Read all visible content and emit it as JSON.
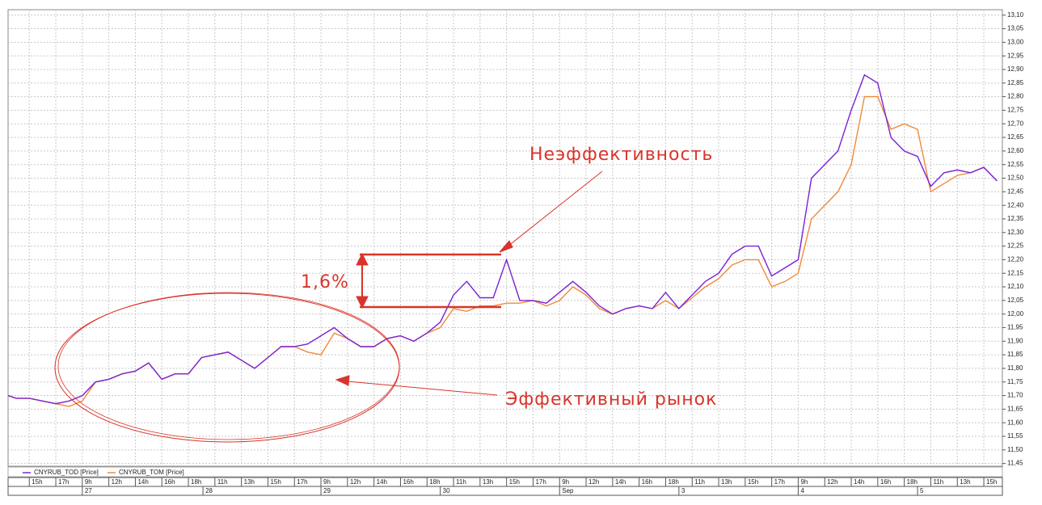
{
  "chart_data": {
    "type": "line",
    "x": [
      0.2,
      0.5,
      1.0,
      1.5,
      2.0,
      2.5,
      3.0,
      3.5,
      4.0,
      4.5,
      5.0,
      5.5,
      6.0,
      6.5,
      7.0,
      7.5,
      8.0,
      8.5,
      9.0,
      9.5,
      10.0,
      10.5,
      11.0,
      11.5,
      12.0,
      12.5,
      13.0,
      13.5,
      14.0,
      14.5,
      15.0,
      15.5,
      16.0,
      16.5,
      17.0,
      17.5,
      18.0,
      18.5,
      19.0,
      19.5,
      20.0,
      20.5,
      21.0,
      21.5,
      22.0,
      22.5,
      23.0,
      23.5,
      24.0,
      24.5,
      25.0,
      25.5,
      26.0,
      26.5,
      27.0,
      27.5,
      28.0,
      28.5,
      29.0,
      29.5,
      30.0,
      30.5,
      31.0,
      31.5,
      32.0,
      32.5,
      33.0,
      33.5,
      34.0,
      34.5,
      35.0,
      35.5,
      36.0,
      36.5,
      37.0,
      37.5
    ],
    "series": [
      {
        "name": "CNYRUB_TOD [Price]",
        "color": "#7b22d4",
        "values": [
          11.7,
          11.69,
          11.69,
          11.68,
          11.67,
          11.68,
          11.7,
          11.75,
          11.76,
          11.78,
          11.79,
          11.82,
          11.76,
          11.78,
          11.78,
          11.84,
          11.85,
          11.86,
          11.83,
          11.8,
          11.84,
          11.88,
          11.88,
          11.89,
          11.92,
          11.95,
          11.91,
          11.88,
          11.88,
          11.91,
          11.92,
          11.9,
          11.93,
          11.97,
          12.07,
          12.12,
          12.06,
          12.06,
          12.2,
          12.05,
          12.05,
          12.04,
          12.08,
          12.12,
          12.08,
          12.03,
          12.0,
          12.02,
          12.03,
          12.02,
          12.08,
          12.02,
          12.07,
          12.12,
          12.15,
          12.22,
          12.25,
          12.25,
          12.14,
          12.17,
          12.2,
          12.5,
          12.55,
          12.6,
          12.75,
          12.88,
          12.85,
          12.65,
          12.6,
          12.58,
          12.47,
          12.52,
          12.53,
          12.52,
          12.54,
          12.49
        ]
      },
      {
        "name": "CNYRUB_TOM [Price]",
        "color": "#f08a3a",
        "values": [
          11.7,
          11.69,
          11.69,
          11.68,
          11.67,
          11.66,
          11.68,
          11.75,
          11.76,
          11.78,
          11.79,
          11.82,
          11.76,
          11.78,
          11.78,
          11.84,
          11.85,
          11.86,
          11.83,
          11.8,
          11.84,
          11.88,
          11.88,
          11.86,
          11.85,
          11.93,
          11.91,
          11.88,
          11.88,
          11.91,
          11.92,
          11.9,
          11.93,
          11.95,
          12.02,
          12.01,
          12.03,
          12.03,
          12.04,
          12.04,
          12.05,
          12.03,
          12.05,
          12.1,
          12.07,
          12.02,
          12.0,
          12.02,
          12.03,
          12.02,
          12.05,
          12.02,
          12.06,
          12.1,
          12.13,
          12.18,
          12.2,
          12.2,
          12.1,
          12.12,
          12.15,
          12.35,
          12.4,
          12.45,
          12.55,
          12.8,
          12.8,
          12.68,
          12.7,
          12.68,
          12.45,
          12.48,
          12.51,
          12.52,
          12.54,
          12.49
        ]
      }
    ],
    "xlim": [
      0.2,
      37.7
    ],
    "xticks": [
      {
        "value": 1,
        "label": "15h"
      },
      {
        "value": 2,
        "label": "17h"
      },
      {
        "value": 3,
        "label": "9h"
      },
      {
        "value": 4,
        "label": "12h"
      },
      {
        "value": 5,
        "label": "14h"
      },
      {
        "value": 6,
        "label": "16h"
      },
      {
        "value": 7,
        "label": "18h"
      },
      {
        "value": 8,
        "label": "11h"
      },
      {
        "value": 9,
        "label": "13h"
      },
      {
        "value": 10,
        "label": "15h"
      },
      {
        "value": 11,
        "label": "17h"
      },
      {
        "value": 12,
        "label": "9h"
      },
      {
        "value": 13,
        "label": "12h"
      },
      {
        "value": 14,
        "label": "14h"
      },
      {
        "value": 15,
        "label": "16h"
      },
      {
        "value": 16,
        "label": "18h"
      },
      {
        "value": 17,
        "label": "11h"
      },
      {
        "value": 18,
        "label": "13h"
      },
      {
        "value": 19,
        "label": "15h"
      },
      {
        "value": 20,
        "label": "17h"
      },
      {
        "value": 21,
        "label": "9h"
      },
      {
        "value": 22,
        "label": "12h"
      },
      {
        "value": 23,
        "label": "14h"
      },
      {
        "value": 24,
        "label": "16h"
      },
      {
        "value": 25,
        "label": "18h"
      },
      {
        "value": 26,
        "label": "11h"
      },
      {
        "value": 27,
        "label": "13h"
      },
      {
        "value": 28,
        "label": "15h"
      },
      {
        "value": 29,
        "label": "17h"
      },
      {
        "value": 30,
        "label": "9h"
      },
      {
        "value": 31,
        "label": "12h"
      },
      {
        "value": 32,
        "label": "14h"
      },
      {
        "value": 33,
        "label": "16h"
      },
      {
        "value": 34,
        "label": "18h"
      },
      {
        "value": 35,
        "label": "11h"
      },
      {
        "value": 36,
        "label": "13h"
      },
      {
        "value": 37,
        "label": "15h"
      }
    ],
    "date_ticks": [
      {
        "value": 3,
        "label": "27"
      },
      {
        "value": 7.55,
        "label": "28"
      },
      {
        "value": 12,
        "label": "29"
      },
      {
        "value": 16.5,
        "label": "30"
      },
      {
        "value": 21,
        "label": "Sep"
      },
      {
        "value": 25.5,
        "label": "3"
      },
      {
        "value": 30,
        "label": "4"
      },
      {
        "value": 34.5,
        "label": "5"
      }
    ],
    "ylim": [
      11.44,
      13.12
    ],
    "yticks": [
      {
        "value": 11.45,
        "label": "11,45"
      },
      {
        "value": 11.5,
        "label": "11,50"
      },
      {
        "value": 11.55,
        "label": "11,55"
      },
      {
        "value": 11.6,
        "label": "11,60"
      },
      {
        "value": 11.65,
        "label": "11,65"
      },
      {
        "value": 11.7,
        "label": "11,70"
      },
      {
        "value": 11.75,
        "label": "11,75"
      },
      {
        "value": 11.8,
        "label": "11,80"
      },
      {
        "value": 11.85,
        "label": "11,85"
      },
      {
        "value": 11.9,
        "label": "11,90"
      },
      {
        "value": 11.95,
        "label": "11,95"
      },
      {
        "value": 12.0,
        "label": "12,00"
      },
      {
        "value": 12.05,
        "label": "12,05"
      },
      {
        "value": 12.1,
        "label": "12,10"
      },
      {
        "value": 12.15,
        "label": "12,15"
      },
      {
        "value": 12.2,
        "label": "12,20"
      },
      {
        "value": 12.25,
        "label": "12,25"
      },
      {
        "value": 12.3,
        "label": "12,30"
      },
      {
        "value": 12.35,
        "label": "12,35"
      },
      {
        "value": 12.4,
        "label": "12,40"
      },
      {
        "value": 12.45,
        "label": "12,45"
      },
      {
        "value": 12.5,
        "label": "12,50"
      },
      {
        "value": 12.55,
        "label": "12,55"
      },
      {
        "value": 12.6,
        "label": "12,60"
      },
      {
        "value": 12.65,
        "label": "12,65"
      },
      {
        "value": 12.7,
        "label": "12,70"
      },
      {
        "value": 12.75,
        "label": "12,75"
      },
      {
        "value": 12.8,
        "label": "12,80"
      },
      {
        "value": 12.85,
        "label": "12,85"
      },
      {
        "value": 12.9,
        "label": "12,90"
      },
      {
        "value": 12.95,
        "label": "12,95"
      },
      {
        "value": 13.0,
        "label": "13,00"
      },
      {
        "value": 13.05,
        "label": "13,05"
      },
      {
        "value": 13.1,
        "label": "13,10"
      }
    ],
    "grid": true,
    "annotations": [
      "Неэффективность",
      "1,6%",
      "Эффективный рынок"
    ]
  }
}
